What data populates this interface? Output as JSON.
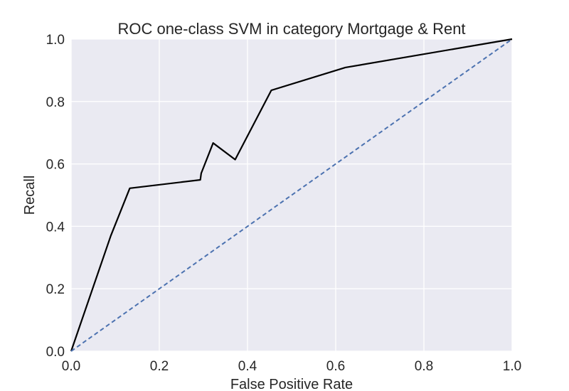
{
  "chart_data": {
    "type": "line",
    "title": "ROC one-class SVM in category Mortgage & Rent",
    "xlabel": "False Positive Rate",
    "ylabel": "Recall",
    "xlim": [
      0.0,
      1.0
    ],
    "ylim": [
      0.0,
      1.0
    ],
    "grid": true,
    "legend": "none",
    "background_color": "#eaeaf2",
    "grid_color": "#ffffff",
    "xticks": [
      "0.0",
      "0.2",
      "0.4",
      "0.6",
      "0.8",
      "1.0"
    ],
    "yticks": [
      "0.0",
      "0.2",
      "0.4",
      "0.6",
      "0.8",
      "1.0"
    ],
    "series": [
      {
        "style": "solid",
        "color": "#000000",
        "x": [
          0.0,
          0.09,
          0.133,
          0.293,
          0.295,
          0.322,
          0.372,
          0.454,
          0.622,
          1.0
        ],
        "y": [
          0.0,
          0.37,
          0.522,
          0.549,
          0.57,
          0.667,
          0.614,
          0.836,
          0.909,
          1.0
        ]
      },
      {
        "style": "dashed",
        "color": "#4c72b0",
        "x": [
          0.0,
          1.0
        ],
        "y": [
          0.0,
          1.0
        ]
      }
    ]
  }
}
